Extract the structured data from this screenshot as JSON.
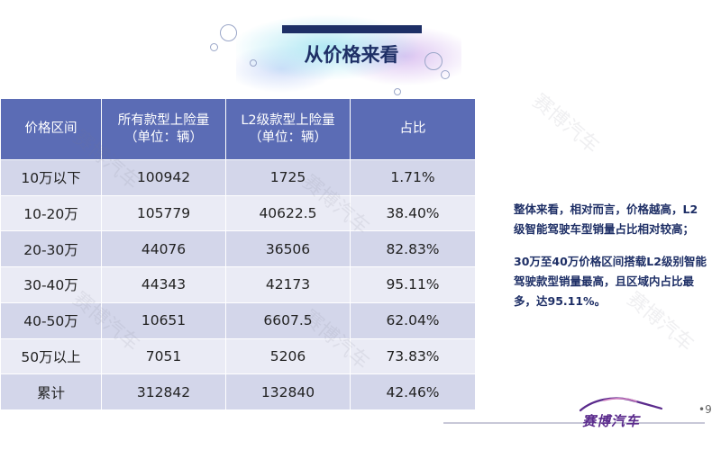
{
  "slide": {
    "title": "从价格来看",
    "page_number": "•9"
  },
  "table": {
    "headers": [
      "价格区间",
      "所有款型上险量\n（单位：辆）",
      "L2级款型上险量\n（单位：辆）",
      "占比"
    ],
    "rows": [
      [
        "10万以下",
        "100942",
        "1725",
        "1.71%"
      ],
      [
        "10-20万",
        "105779",
        "40622.5",
        "38.40%"
      ],
      [
        "20-30万",
        "44076",
        "36506",
        "82.83%"
      ],
      [
        "30-40万",
        "44343",
        "42173",
        "95.11%"
      ],
      [
        "40-50万",
        "10651",
        "6607.5",
        "62.04%"
      ],
      [
        "50万以上",
        "7051",
        "5206",
        "73.83%"
      ],
      [
        "累计",
        "312842",
        "132840",
        "42.46%"
      ]
    ]
  },
  "notes": {
    "paragraph_1": "整体来看，相对而言，价格越高，L2级智能驾驶车型销量占比相对较高；",
    "paragraph_2": "30万至40万价格区间搭载L2级别智能驾驶款型销量最高，且区域内占比最多，达95.11%。"
  },
  "logo": {
    "text": "赛博汽车",
    "icon": "car-outline-icon"
  },
  "watermark": {
    "text": "赛博汽车"
  },
  "colors": {
    "header_bg": "#5b6cb5",
    "row_dark": "#d3d6ea",
    "row_light": "#eaebf5",
    "title_color": "#1e2f66",
    "note_color": "#1e2f66",
    "logo_color": "#5a2a8c"
  }
}
